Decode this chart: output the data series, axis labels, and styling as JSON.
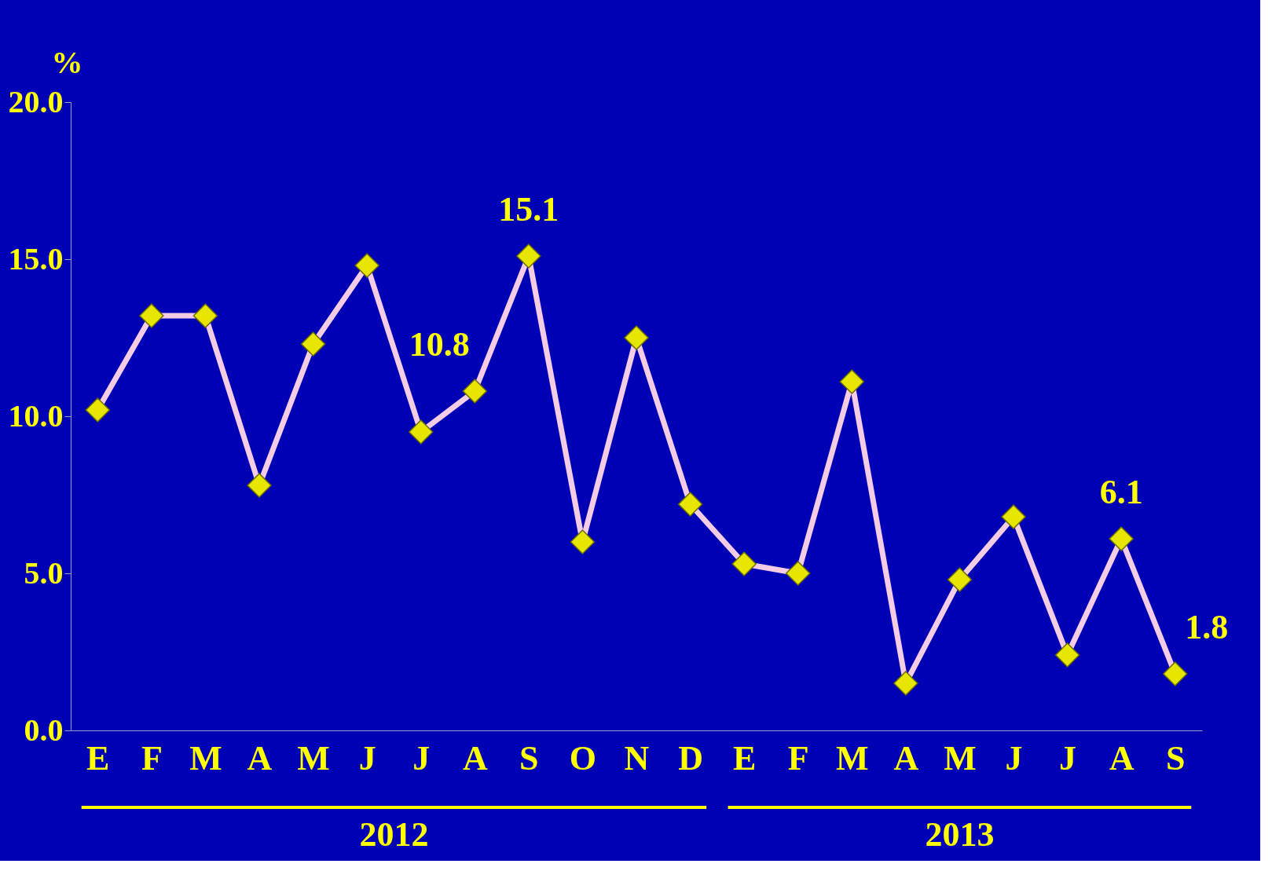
{
  "chart_data": {
    "type": "line",
    "ylabel": "%",
    "categories": [
      "E",
      "F",
      "M",
      "A",
      "M",
      "J",
      "J",
      "A",
      "S",
      "O",
      "N",
      "D",
      "E",
      "F",
      "M",
      "A",
      "M",
      "J",
      "J",
      "A",
      "S"
    ],
    "series": [
      {
        "color": "#f4cce6",
        "values": [
          10.2,
          13.2,
          13.2,
          7.8,
          12.3,
          14.8,
          9.5,
          10.8,
          15.1,
          6.0,
          12.5,
          7.2,
          5.3,
          5.0,
          11.1,
          1.5,
          4.8,
          6.8,
          2.4,
          6.1,
          1.8
        ],
        "value_labels": [
          null,
          null,
          null,
          null,
          null,
          null,
          null,
          "10.8",
          "15.1",
          null,
          null,
          null,
          null,
          null,
          null,
          null,
          null,
          null,
          null,
          "6.1",
          "1.8"
        ]
      }
    ],
    "ylim": [
      0,
      20
    ],
    "yticks": [
      {
        "value": 0,
        "label": "0.0"
      },
      {
        "value": 5,
        "label": "5.0"
      },
      {
        "value": 10,
        "label": "10.0"
      },
      {
        "value": 15,
        "label": "15.0"
      },
      {
        "value": 20,
        "label": "20.0"
      }
    ],
    "marker": "diamond",
    "grid": false,
    "annotations": [
      "2012",
      "2013"
    ]
  }
}
